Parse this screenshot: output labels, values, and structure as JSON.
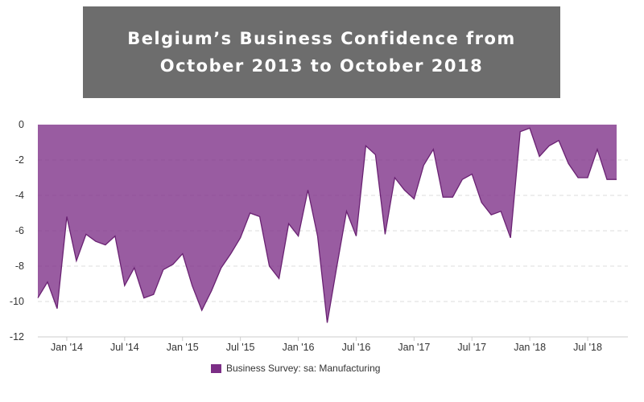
{
  "title_lines": [
    "Belgium’s Business Confidence from",
    "October 2013 to October 2018"
  ],
  "colors": {
    "fill": "#7c2e86",
    "stroke": "#6a2273",
    "title_bg": "#6d6d6d"
  },
  "chart_data": {
    "type": "area",
    "title": "Belgium’s Business Confidence from October 2013 to October 2018",
    "xlabel": "",
    "ylabel": "",
    "ylim": [
      -12,
      0
    ],
    "y_ticks": [
      0,
      -2,
      -4,
      -6,
      -8,
      -10,
      -12
    ],
    "y_tick_labels": [
      "0",
      "-2",
      "-4",
      "-6",
      "-8",
      "-10",
      "-12"
    ],
    "x_tick_labels": [
      "Jan '14",
      "Jul '14",
      "Jan '15",
      "Jul '15",
      "Jan '16",
      "Jul '16",
      "Jan '17",
      "Jul '17",
      "Jan '18",
      "Jul '18"
    ],
    "x_tick_dates": [
      "2014-01",
      "2014-07",
      "2015-01",
      "2015-07",
      "2016-01",
      "2016-07",
      "2017-01",
      "2017-07",
      "2018-01",
      "2018-07"
    ],
    "grid": true,
    "legend_position": "bottom",
    "series": [
      {
        "name": "Business Survey: sa: Manufacturing",
        "x": [
          "2013-10",
          "2013-11",
          "2013-12",
          "2014-01",
          "2014-02",
          "2014-03",
          "2014-04",
          "2014-05",
          "2014-06",
          "2014-07",
          "2014-08",
          "2014-09",
          "2014-10",
          "2014-11",
          "2014-12",
          "2015-01",
          "2015-02",
          "2015-03",
          "2015-04",
          "2015-05",
          "2015-06",
          "2015-07",
          "2015-08",
          "2015-09",
          "2015-10",
          "2015-11",
          "2015-12",
          "2016-01",
          "2016-02",
          "2016-03",
          "2016-04",
          "2016-05",
          "2016-06",
          "2016-07",
          "2016-08",
          "2016-09",
          "2016-10",
          "2016-11",
          "2016-12",
          "2017-01",
          "2017-02",
          "2017-03",
          "2017-04",
          "2017-05",
          "2017-06",
          "2017-07",
          "2017-08",
          "2017-09",
          "2017-10",
          "2017-11",
          "2017-12",
          "2018-01",
          "2018-02",
          "2018-03",
          "2018-04",
          "2018-05",
          "2018-06",
          "2018-07",
          "2018-08",
          "2018-09",
          "2018-10"
        ],
        "values": [
          -9.8,
          -8.9,
          -10.4,
          -5.2,
          -7.7,
          -6.2,
          -6.6,
          -6.8,
          -6.3,
          -9.1,
          -8.1,
          -9.8,
          -9.6,
          -8.2,
          -7.9,
          -7.3,
          -9.1,
          -10.5,
          -9.4,
          -8.1,
          -7.3,
          -6.4,
          -5.0,
          -5.2,
          -8.0,
          -8.7,
          -5.6,
          -6.3,
          -3.7,
          -6.3,
          -11.2,
          -8.0,
          -4.9,
          -6.3,
          -1.2,
          -1.7,
          -6.2,
          -3.0,
          -3.7,
          -4.2,
          -2.3,
          -1.4,
          -4.1,
          -4.1,
          -3.1,
          -2.8,
          -4.4,
          -5.1,
          -4.9,
          -6.4,
          -0.4,
          -0.2,
          -1.8,
          -1.2,
          -0.9,
          -2.2,
          -3.0,
          -3.0,
          -1.4,
          -3.1,
          -3.1
        ]
      }
    ]
  }
}
